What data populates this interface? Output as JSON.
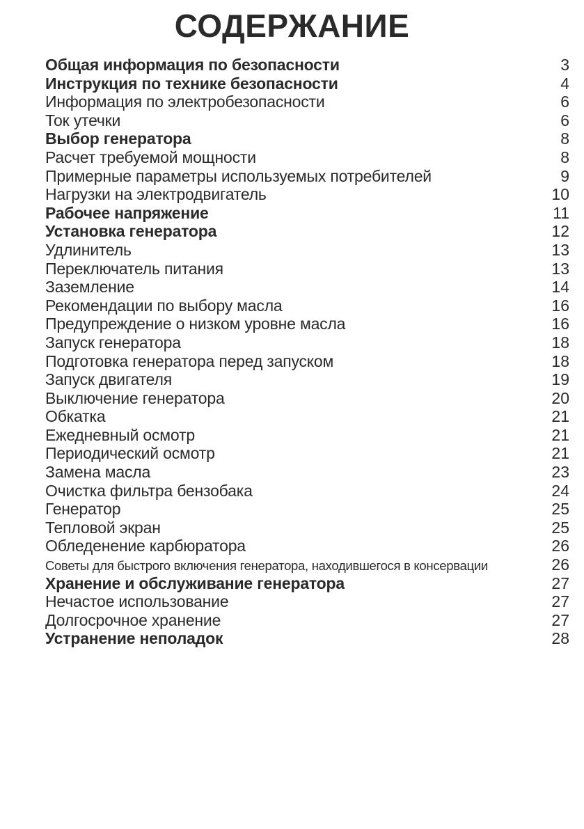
{
  "page": {
    "title": "СОДЕРЖАНИЕ"
  },
  "toc": {
    "entries": [
      {
        "label": "Общая информация по безопасности",
        "page": "3",
        "bold": true,
        "condensed": false
      },
      {
        "label": "Инструкция по технике безопасности",
        "page": "4",
        "bold": true,
        "condensed": false
      },
      {
        "label": "Информация по электробезопасности",
        "page": "6",
        "bold": false,
        "condensed": false
      },
      {
        "label": "Ток утечки",
        "page": "6",
        "bold": false,
        "condensed": false
      },
      {
        "label": "Выбор генератора",
        "page": "8",
        "bold": true,
        "condensed": false
      },
      {
        "label": "Расчет требуемой мощности",
        "page": "8",
        "bold": false,
        "condensed": false
      },
      {
        "label": "Примерные параметры используемых потребителей",
        "page": "9",
        "bold": false,
        "condensed": false
      },
      {
        "label": "Нагрузки на электродвигатель",
        "page": "10",
        "bold": false,
        "condensed": false
      },
      {
        "label": "Рабочее напряжение",
        "page": "11",
        "bold": true,
        "condensed": false
      },
      {
        "label": "Установка генератора",
        "page": "12",
        "bold": true,
        "condensed": false
      },
      {
        "label": "Удлинитель",
        "page": "13",
        "bold": false,
        "condensed": false
      },
      {
        "label": "Переключатель питания",
        "page": "13",
        "bold": false,
        "condensed": false
      },
      {
        "label": "Заземление",
        "page": "14",
        "bold": false,
        "condensed": false
      },
      {
        "label": "Рекомендации по выбору масла",
        "page": "16",
        "bold": false,
        "condensed": false
      },
      {
        "label": "Предупреждение о низком уровне масла",
        "page": "16",
        "bold": false,
        "condensed": false
      },
      {
        "label": "Запуск генератора",
        "page": "18",
        "bold": false,
        "condensed": false
      },
      {
        "label": "Подготовка генератора перед запуском",
        "page": "18",
        "bold": false,
        "condensed": false
      },
      {
        "label": "Запуск двигателя",
        "page": "19",
        "bold": false,
        "condensed": false
      },
      {
        "label": "Выключение генератора",
        "page": "20",
        "bold": false,
        "condensed": false
      },
      {
        "label": "Обкатка",
        "page": "21",
        "bold": false,
        "condensed": false
      },
      {
        "label": "Ежедневный осмотр",
        "page": "21",
        "bold": false,
        "condensed": false
      },
      {
        "label": "Периодический осмотр",
        "page": "21",
        "bold": false,
        "condensed": false
      },
      {
        "label": "Замена масла",
        "page": "23",
        "bold": false,
        "condensed": false
      },
      {
        "label": "Очистка фильтра бензобака",
        "page": "24",
        "bold": false,
        "condensed": false
      },
      {
        "label": "Генератор",
        "page": "25",
        "bold": false,
        "condensed": false
      },
      {
        "label": "Тепловой экран",
        "page": "25",
        "bold": false,
        "condensed": false
      },
      {
        "label": "Обледенение карбюратора",
        "page": "26",
        "bold": false,
        "condensed": false
      },
      {
        "label": "Советы для быстрого включения генератора, находившегося в консервации",
        "page": "26",
        "bold": false,
        "condensed": true
      },
      {
        "label": "Хранение и обслуживание генератора",
        "page": "27",
        "bold": true,
        "condensed": false
      },
      {
        "label": "Нечастое использование",
        "page": "27",
        "bold": false,
        "condensed": false
      },
      {
        "label": "Долгосрочное хранение",
        "page": "27",
        "bold": false,
        "condensed": false
      },
      {
        "label": "Устранение неполадок",
        "page": "28",
        "bold": true,
        "condensed": false
      }
    ]
  }
}
